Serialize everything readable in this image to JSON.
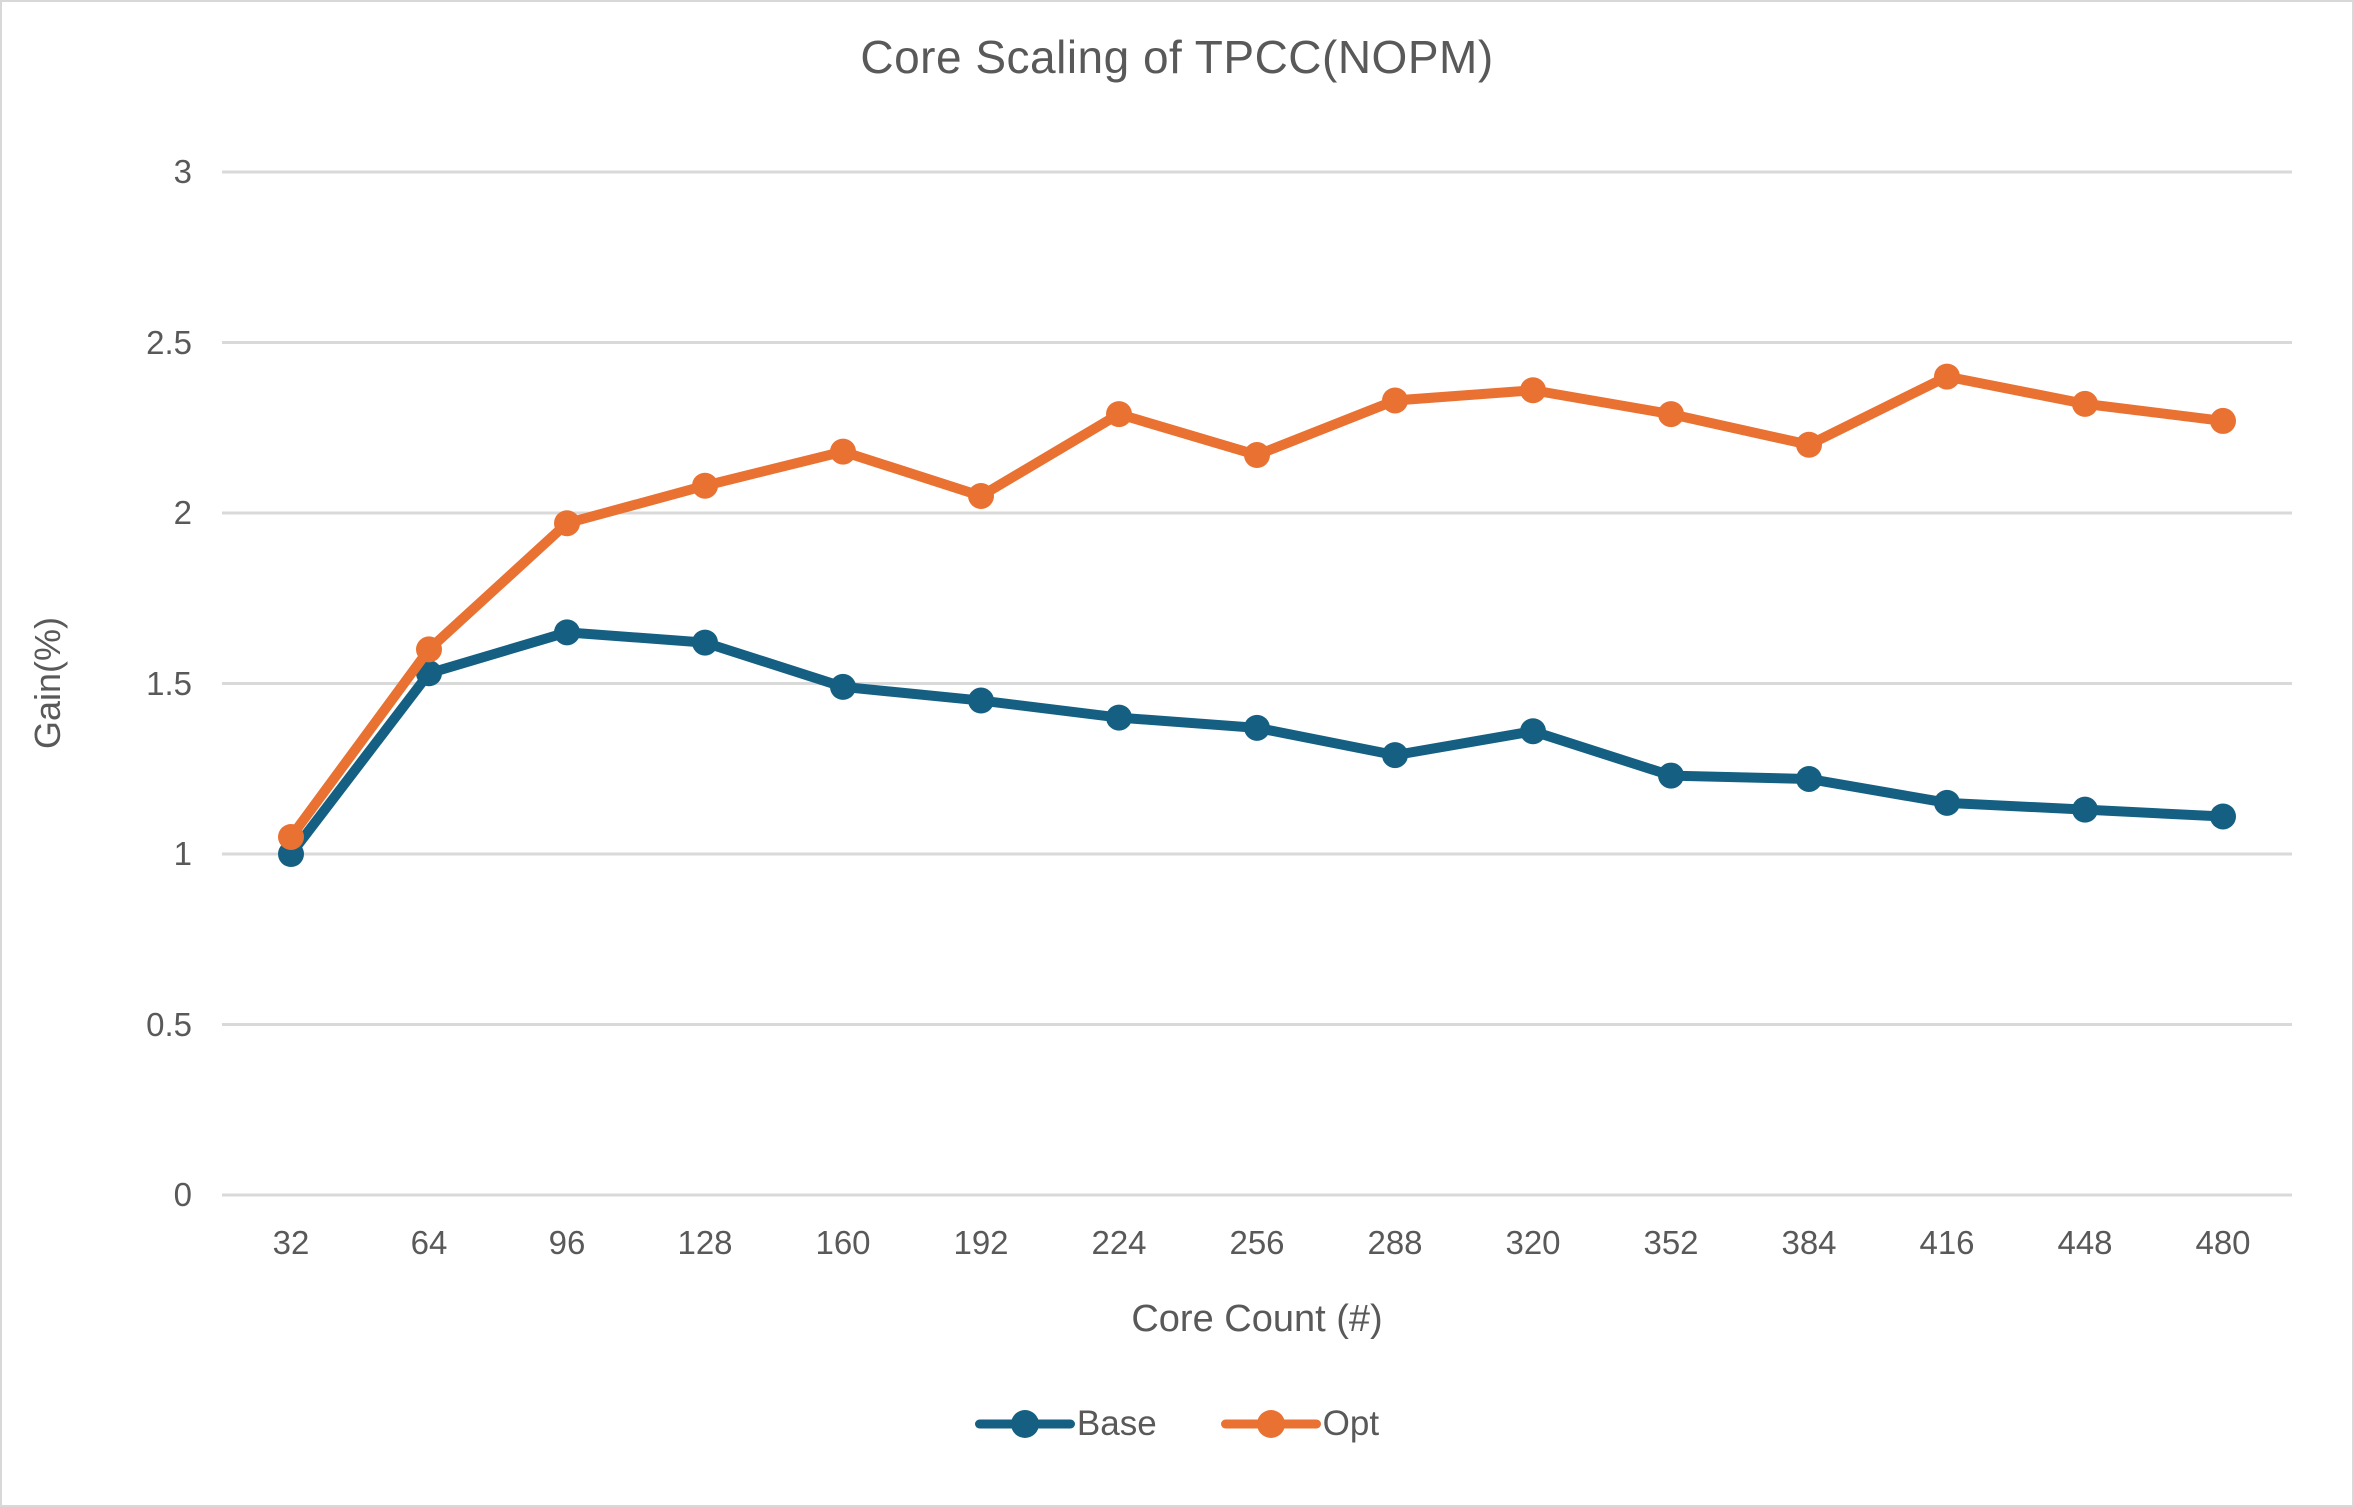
{
  "chart_data": {
    "type": "line",
    "title": "Core Scaling of TPCC(NOPM)",
    "xlabel": "Core Count (#)",
    "ylabel": "Gain(%)",
    "categories": [
      32,
      64,
      96,
      128,
      160,
      192,
      224,
      256,
      288,
      320,
      352,
      384,
      416,
      448,
      480
    ],
    "series": [
      {
        "name": "Base",
        "color": "#156082",
        "values": [
          1.0,
          1.53,
          1.65,
          1.62,
          1.49,
          1.45,
          1.4,
          1.37,
          1.29,
          1.36,
          1.23,
          1.22,
          1.15,
          1.13,
          1.11
        ]
      },
      {
        "name": "Opt",
        "color": "#E97132",
        "values": [
          1.05,
          1.6,
          1.97,
          2.08,
          2.18,
          2.05,
          2.29,
          2.17,
          2.33,
          2.36,
          2.29,
          2.2,
          2.4,
          2.32,
          2.27
        ]
      }
    ],
    "ylim": [
      0,
      3
    ],
    "y_ticks": [
      0,
      0.5,
      1,
      1.5,
      2,
      2.5,
      3
    ],
    "grid": true,
    "legend_position": "bottom",
    "colors": {
      "text": "#595959",
      "gridline": "#d9d9d9",
      "background": "#ffffff"
    }
  }
}
